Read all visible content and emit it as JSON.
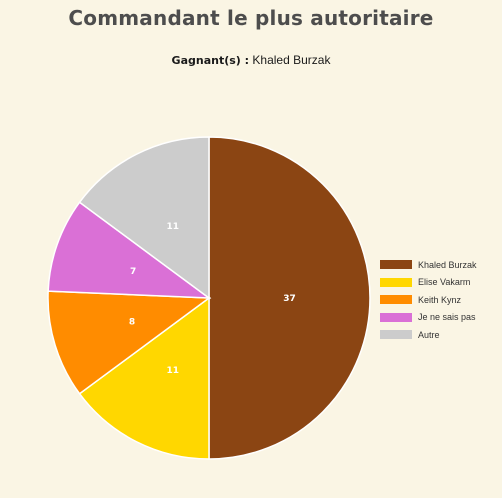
{
  "chart_data": {
    "type": "pie",
    "title": "Commandant le plus autoritaire",
    "subtitle_label": "Gagnant(s) :",
    "subtitle_value": "Khaled Burzak",
    "slices": [
      {
        "name": "Khaled Burzak",
        "value": 37,
        "color": "#8b4513"
      },
      {
        "name": "Elise Vakarm",
        "value": 11,
        "color": "#ffd700"
      },
      {
        "name": "Keith Kynz",
        "value": 8,
        "color": "#ff8c00"
      },
      {
        "name": "Je ne sais pas",
        "value": 7,
        "color": "#da70d6"
      },
      {
        "name": "Autre",
        "value": 11,
        "color": "#cccccc"
      }
    ],
    "legend_position": "right"
  }
}
